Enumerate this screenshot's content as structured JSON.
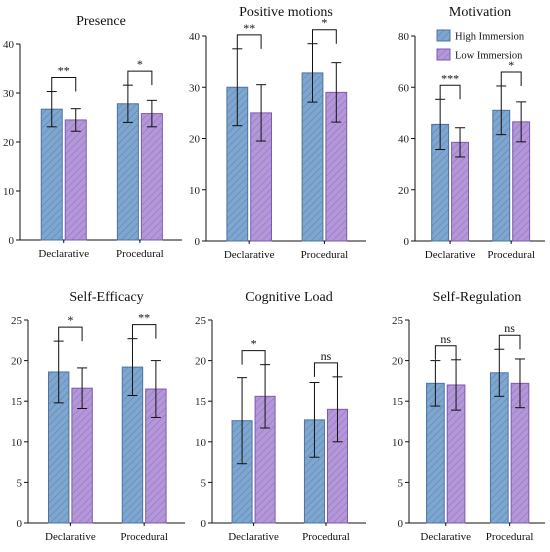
{
  "chart_data": [
    {
      "type": "bar",
      "title": "Presence",
      "categories": [
        "Declarative",
        "Procedural"
      ],
      "ylim": [
        0,
        40
      ],
      "yticks": [
        0,
        10,
        20,
        30,
        40
      ],
      "series": [
        {
          "name": "High Immersion",
          "values": [
            26.7,
            27.8
          ],
          "errors": [
            3.6,
            3.8
          ]
        },
        {
          "name": "Low Immersion",
          "values": [
            24.5,
            25.8
          ],
          "errors": [
            2.3,
            2.7
          ]
        }
      ],
      "significance": [
        "**",
        "*"
      ]
    },
    {
      "type": "bar",
      "title": "Positive motions",
      "categories": [
        "Declarative",
        "Procedural"
      ],
      "ylim": [
        0,
        40
      ],
      "yticks": [
        0,
        10,
        20,
        30,
        40
      ],
      "series": [
        {
          "name": "High Immersion",
          "values": [
            30.0,
            32.8
          ],
          "errors": [
            7.5,
            5.7
          ]
        },
        {
          "name": "Low Immersion",
          "values": [
            25.0,
            29.0
          ],
          "errors": [
            5.5,
            5.8
          ]
        }
      ],
      "significance": [
        "**",
        "*"
      ]
    },
    {
      "type": "bar",
      "title": "Motivation",
      "categories": [
        "Declarative",
        "Procedural"
      ],
      "ylim": [
        0,
        80
      ],
      "yticks": [
        0,
        20,
        40,
        60,
        80
      ],
      "series": [
        {
          "name": "High Immersion",
          "values": [
            45.5,
            51.0
          ],
          "errors": [
            9.8,
            9.5
          ]
        },
        {
          "name": "Low Immersion",
          "values": [
            38.5,
            46.5
          ],
          "errors": [
            5.7,
            7.8
          ]
        }
      ],
      "significance": [
        "***",
        "*"
      ],
      "legend": "top-right"
    },
    {
      "type": "bar",
      "title": "Self-Efficacy",
      "categories": [
        "Declarative",
        "Procedural"
      ],
      "ylim": [
        0,
        25
      ],
      "yticks": [
        0,
        5,
        10,
        15,
        20,
        25
      ],
      "series": [
        {
          "name": "High Immersion",
          "values": [
            18.6,
            19.2
          ],
          "errors": [
            3.8,
            3.5
          ]
        },
        {
          "name": "Low Immersion",
          "values": [
            16.6,
            16.5
          ],
          "errors": [
            2.5,
            3.5
          ]
        }
      ],
      "significance": [
        "*",
        "**"
      ]
    },
    {
      "type": "bar",
      "title": "Cognitive Load",
      "categories": [
        "Declarative",
        "Procedural"
      ],
      "ylim": [
        0,
        25
      ],
      "yticks": [
        0,
        5,
        10,
        15,
        20,
        25
      ],
      "series": [
        {
          "name": "High Immersion",
          "values": [
            12.6,
            12.7
          ],
          "errors": [
            5.3,
            4.6
          ]
        },
        {
          "name": "Low Immersion",
          "values": [
            15.6,
            14.0
          ],
          "errors": [
            3.9,
            4.0
          ]
        }
      ],
      "significance": [
        "*",
        "ns"
      ]
    },
    {
      "type": "bar",
      "title": "Self-Regulation",
      "categories": [
        "Declarative",
        "Procedural"
      ],
      "ylim": [
        0,
        25
      ],
      "yticks": [
        0,
        5,
        10,
        15,
        20,
        25
      ],
      "series": [
        {
          "name": "High Immersion",
          "values": [
            17.2,
            18.5
          ],
          "errors": [
            2.8,
            2.9
          ]
        },
        {
          "name": "Low Immersion",
          "values": [
            17.0,
            17.2
          ],
          "errors": [
            3.1,
            3.0
          ]
        }
      ],
      "significance": [
        "ns",
        "ns"
      ]
    }
  ],
  "colors": {
    "high_immersion": "#7ea6cf",
    "low_immersion": "#b497d8"
  }
}
